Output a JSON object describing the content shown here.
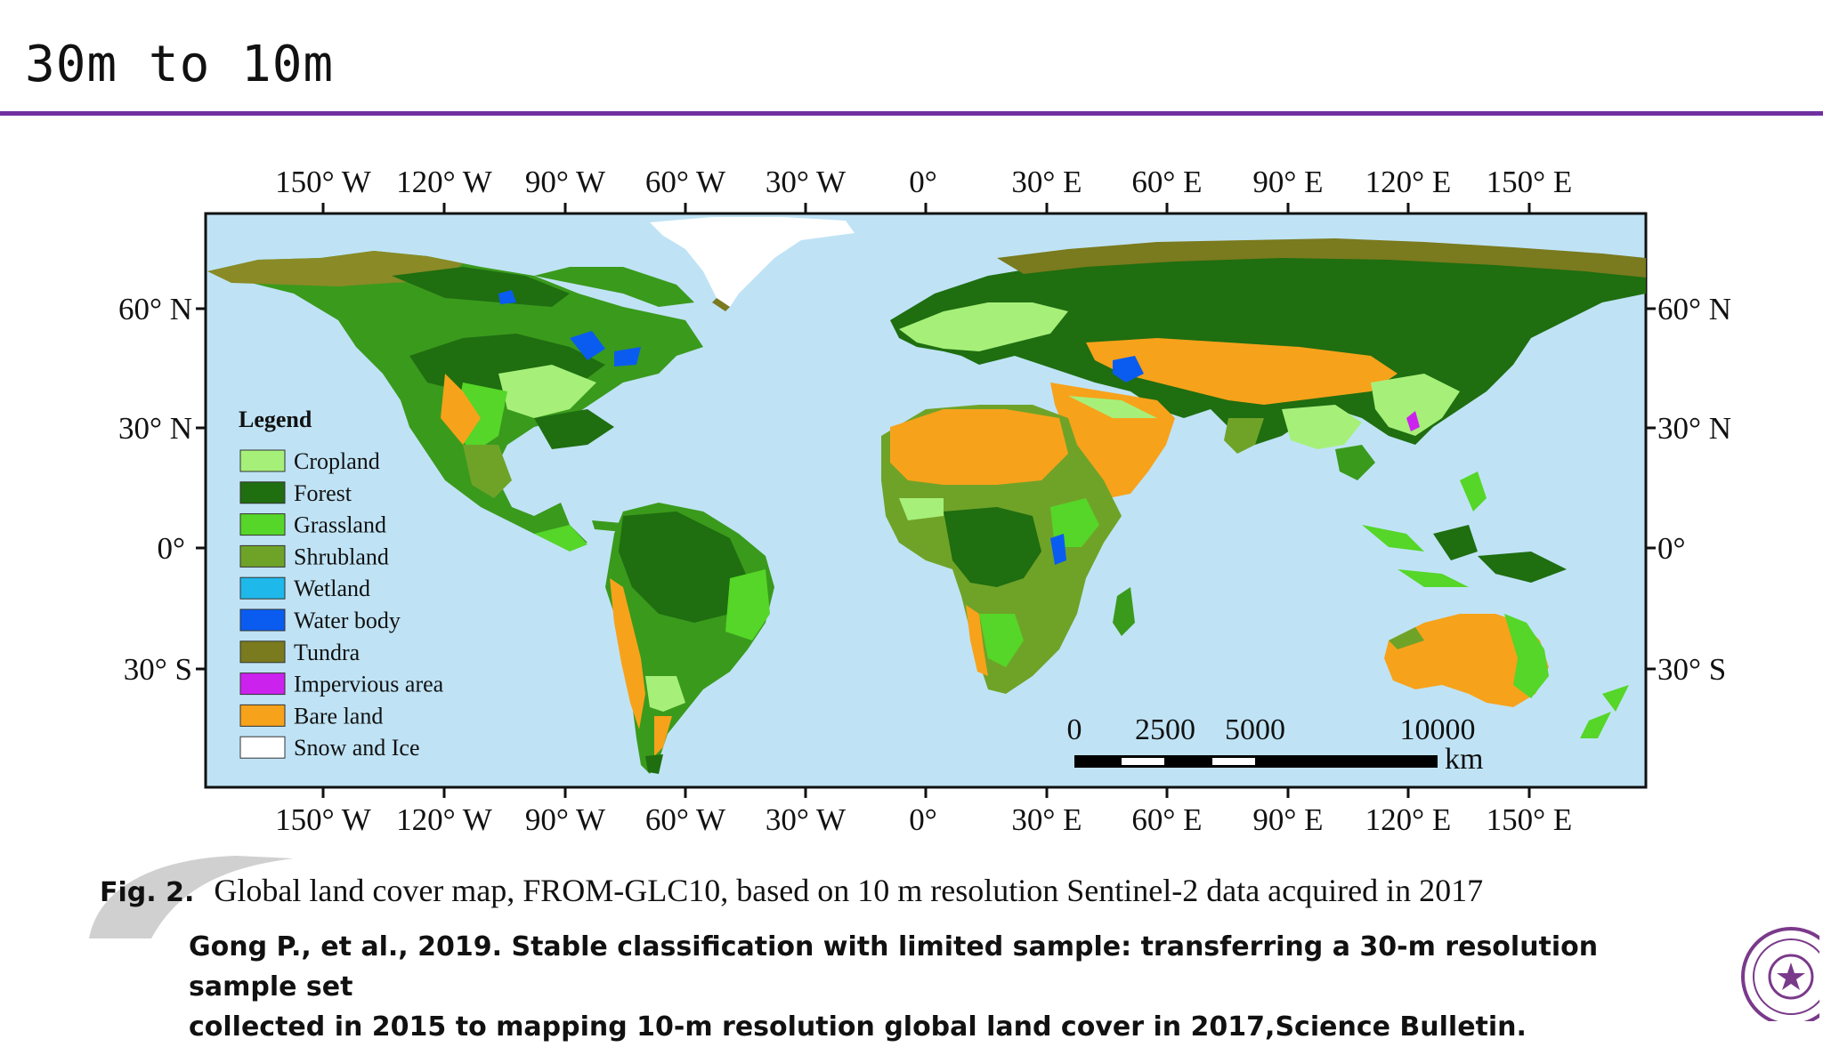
{
  "slide": {
    "title": "30m to 10m"
  },
  "map": {
    "top_labels": [
      "150° W",
      "120° W",
      "90° W",
      "60° W",
      "30° W",
      "0°",
      "30° E",
      "60° E",
      "90° E",
      "120° E",
      "150° E"
    ],
    "left_labels": [
      "60° N",
      "30° N",
      "0°",
      "30° S"
    ],
    "right_labels": [
      "60° N",
      "30° N",
      "0°",
      "30° S"
    ],
    "legend": {
      "title": "Legend",
      "items": [
        {
          "label": "Cropland",
          "color": "#a6f07a"
        },
        {
          "label": "Forest",
          "color": "#1f6e10"
        },
        {
          "label": "Grassland",
          "color": "#55d628"
        },
        {
          "label": "Shrubland",
          "color": "#6fa328"
        },
        {
          "label": "Wetland",
          "color": "#1fb8ea"
        },
        {
          "label": "Water body",
          "color": "#0a5cf0"
        },
        {
          "label": "Tundra",
          "color": "#7a7a1e"
        },
        {
          "label": "Impervious area",
          "color": "#cc22ee"
        },
        {
          "label": "Bare land",
          "color": "#f7a21b"
        },
        {
          "label": "Snow and Ice",
          "color": "#ffffff"
        }
      ]
    },
    "scale_bar": {
      "ticks": [
        "0",
        "2500",
        "5000",
        "10000"
      ],
      "unit": "km"
    },
    "colors": {
      "ocean": "#bfe3f5",
      "title_rule": "#7030a0"
    }
  },
  "caption": {
    "label": "Fig. 2.",
    "text": "Global land cover map, FROM-GLC10, based on 10 m resolution Sentinel-2 data acquired in 2017"
  },
  "citation": {
    "line1": "Gong P., et al., 2019. Stable classification with limited sample: transferring a 30-m resolution sample set",
    "line2": "collected in 2015 to mapping 10-m resolution global land cover in 2017,Science Bulletin."
  }
}
